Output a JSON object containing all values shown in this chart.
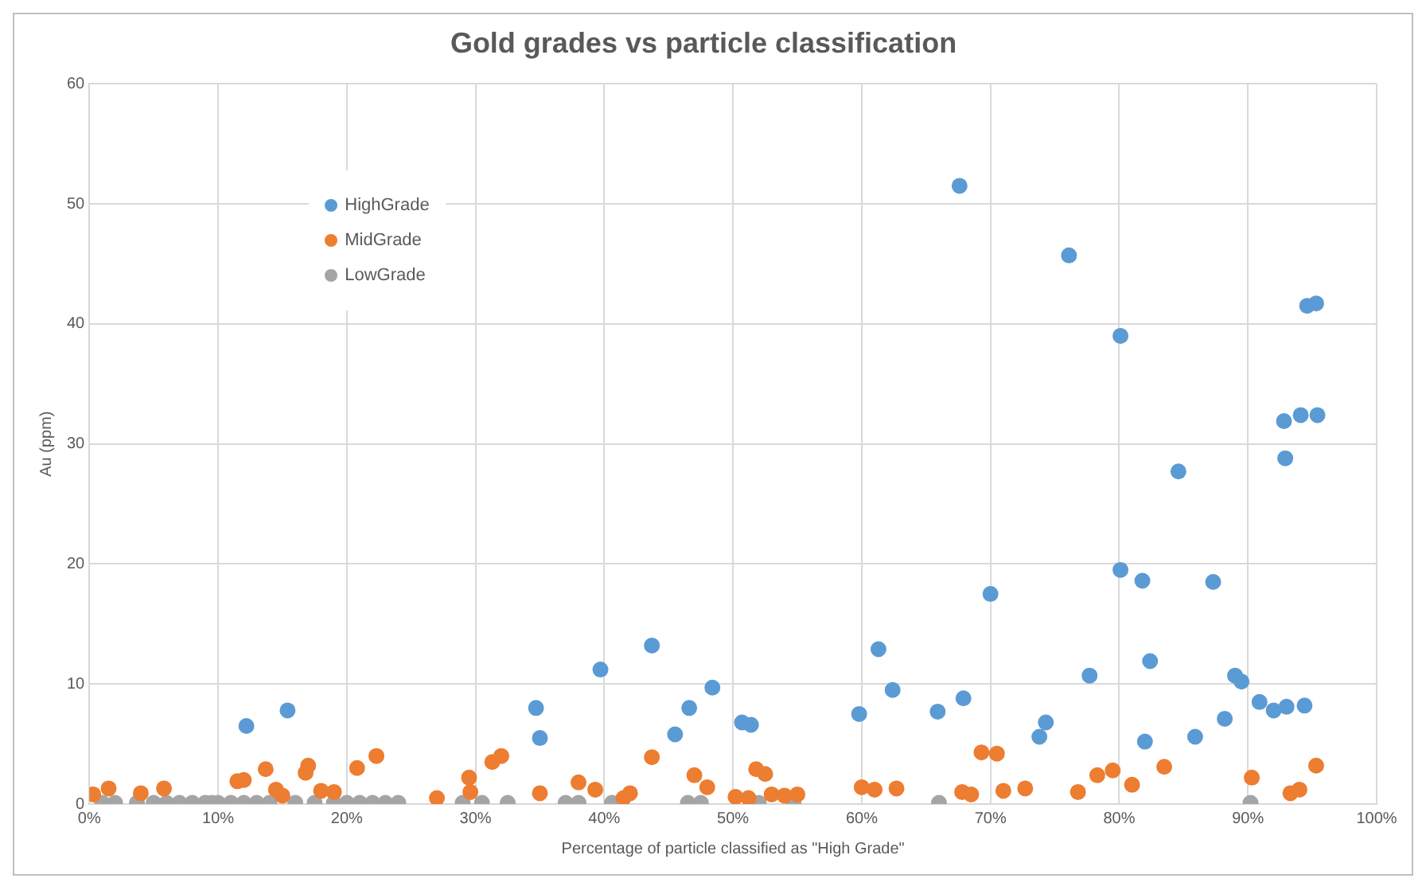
{
  "chart_data": {
    "type": "scatter",
    "title": "Gold grades vs particle classification",
    "xlabel": "Percentage of particle classified as \"High Grade\"",
    "ylabel": "Au (ppm)",
    "xlim": [
      0,
      100
    ],
    "ylim": [
      0,
      60
    ],
    "xticks": [
      {
        "value": 0,
        "label": "0%"
      },
      {
        "value": 10,
        "label": "10%"
      },
      {
        "value": 20,
        "label": "20%"
      },
      {
        "value": 30,
        "label": "30%"
      },
      {
        "value": 40,
        "label": "40%"
      },
      {
        "value": 50,
        "label": "50%"
      },
      {
        "value": 60,
        "label": "60%"
      },
      {
        "value": 70,
        "label": "70%"
      },
      {
        "value": 80,
        "label": "80%"
      },
      {
        "value": 90,
        "label": "90%"
      },
      {
        "value": 100,
        "label": "100%"
      }
    ],
    "yticks": [
      0,
      10,
      20,
      30,
      40,
      50,
      60
    ],
    "grid": true,
    "legend": "top left",
    "marker": "circle",
    "series": [
      {
        "name": "HighGrade",
        "color": "#5b9bd5",
        "x": [
          12.2,
          15.4,
          34.7,
          35,
          39.7,
          43.7,
          45.5,
          46.6,
          48.4,
          50.7,
          51.4,
          59.8,
          61.3,
          62.4,
          65.9,
          67.6,
          67.9,
          70,
          73.8,
          74.3,
          76.1,
          77.7,
          80.1,
          80.1,
          81.8,
          82,
          82.4,
          84.6,
          85.9,
          87.3,
          88.2,
          89,
          89.5,
          90.9,
          92,
          92.8,
          92.9,
          93,
          94.1,
          94.4,
          94.6,
          95.3,
          95.4
        ],
        "values": [
          6.5,
          7.8,
          8.0,
          5.5,
          11.2,
          13.2,
          5.8,
          8.0,
          9.7,
          6.8,
          6.6,
          7.5,
          12.9,
          9.5,
          7.7,
          51.5,
          8.8,
          17.5,
          5.6,
          6.8,
          45.7,
          10.7,
          39,
          19.5,
          18.6,
          5.2,
          11.9,
          27.7,
          5.6,
          18.5,
          7.1,
          10.7,
          10.2,
          8.5,
          7.8,
          31.9,
          28.8,
          8.1,
          32.4,
          8.2,
          41.5,
          41.7,
          32.4
        ]
      },
      {
        "name": "MidGrade",
        "color": "#ed7d31",
        "x": [
          0.3,
          1.5,
          4,
          5.8,
          11.5,
          12,
          13.7,
          14.5,
          15,
          16.8,
          17,
          18,
          19,
          20.8,
          22.3,
          27,
          29.5,
          29.6,
          31.3,
          32,
          35,
          38,
          39.3,
          41.5,
          42,
          43.7,
          47,
          48,
          50.2,
          51.2,
          51.8,
          52.5,
          53,
          54,
          55,
          60,
          61,
          62.7,
          67.8,
          68.5,
          69.3,
          70.5,
          71,
          72.7,
          76.8,
          78.3,
          79.5,
          81,
          83.5,
          90.3,
          93.3,
          94,
          95.3
        ],
        "values": [
          0.8,
          1.3,
          0.9,
          1.3,
          1.9,
          2.0,
          2.9,
          1.2,
          0.7,
          2.6,
          3.2,
          1.1,
          1.0,
          3.0,
          4.0,
          0.5,
          2.2,
          1.0,
          3.5,
          4.0,
          0.9,
          1.8,
          1.2,
          0.5,
          0.9,
          3.9,
          2.4,
          1.4,
          0.6,
          0.5,
          2.9,
          2.5,
          0.8,
          0.7,
          0.8,
          1.4,
          1.2,
          1.3,
          1.0,
          0.8,
          4.3,
          4.2,
          1.1,
          1.3,
          1.0,
          2.4,
          2.8,
          1.6,
          3.1,
          2.2,
          0.9,
          1.2,
          3.2
        ]
      },
      {
        "name": "LowGrade",
        "color": "#a5a5a5",
        "x": [
          1,
          2,
          3.7,
          5,
          6,
          7,
          8,
          9,
          9.5,
          10,
          11,
          12,
          13,
          14,
          15,
          16,
          17.5,
          19,
          20,
          21,
          22,
          23,
          24,
          27,
          29,
          30,
          30.5,
          32.5,
          37,
          38,
          40.6,
          42,
          46.5,
          47.5,
          52,
          54.7,
          66,
          90.2
        ],
        "values": [
          0.1,
          0.1,
          0.1,
          0.1,
          0.1,
          0.1,
          0.1,
          0.1,
          0.1,
          0.1,
          0.1,
          0.1,
          0.1,
          0.1,
          null,
          0.1,
          0.1,
          0.1,
          0.1,
          0.1,
          0.1,
          0.1,
          0.1,
          null,
          0.1,
          null,
          0.1,
          0.1,
          0.1,
          0.1,
          0.1,
          null,
          0.1,
          0.1,
          0.1,
          0.1,
          0.1,
          0.1
        ]
      }
    ]
  }
}
